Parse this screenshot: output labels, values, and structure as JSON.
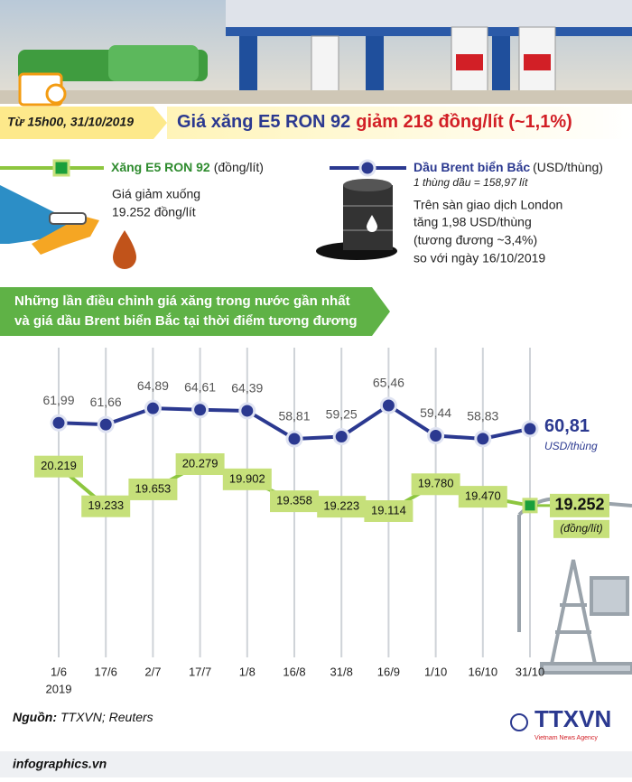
{
  "header": {
    "date": "Từ 15h00, 31/10/2019",
    "title": "Giá xăng E5 RON 92",
    "title_change": "giảm 218 đồng/lít (~1,1%)"
  },
  "legend": {
    "petrol_unit": "(đồng/lít)",
    "petrol_note_1": "Giá giảm xuống",
    "petrol_note_2": "19.252 đồng/lít",
    "brent_unit": "(USD/thùng)",
    "brent_barrel": "1 thùng dầu = 158,97 lít",
    "brent_note": [
      "Trên sàn giao dịch London",
      "tăng 1,98 USD/thùng",
      "(tương đương ~3,4%)",
      "so với ngày 16/10/2019"
    ]
  },
  "banner": [
    "Những lần điều chỉnh giá xăng trong nước gần nhất",
    "và giá dầu Brent biển Bắc tại thời điểm tương đương"
  ],
  "chart_data": {
    "type": "line",
    "categories": [
      "1/6",
      "17/6",
      "2/7",
      "17/7",
      "1/8",
      "16/8",
      "31/8",
      "16/9",
      "1/10",
      "16/10",
      "31/10"
    ],
    "year": "2019",
    "series": [
      {
        "name": "Dầu Brent biển Bắc",
        "color": "#2b3990",
        "unit": "USD/thùng",
        "values": [
          61.99,
          61.66,
          64.89,
          64.61,
          64.39,
          58.81,
          59.25,
          65.46,
          59.44,
          58.83,
          60.81
        ],
        "value_labels": [
          "61,99",
          "61,66",
          "64,89",
          "64,61",
          "64,39",
          "58,81",
          "59,25",
          "65,46",
          "59,44",
          "58,83",
          "60,81"
        ]
      },
      {
        "name": "Xăng E5 RON 92",
        "color": "#8dc63f",
        "unit": "(đồng/lít)",
        "values": [
          20219,
          19233,
          19653,
          20279,
          19902,
          19358,
          19223,
          19114,
          19780,
          19470,
          19252
        ],
        "value_labels": [
          "20.219",
          "19.233",
          "19.653",
          "20.279",
          "19.902",
          "19.358",
          "19.223",
          "19.114",
          "19.780",
          "19.470",
          "19.252"
        ]
      }
    ]
  },
  "footer": {
    "source_label": "Nguồn:",
    "source": "TTXVN; Reuters",
    "site": "infographics.vn",
    "logo": "TTXVN",
    "logo_sub": "Vietnam News Agency"
  }
}
